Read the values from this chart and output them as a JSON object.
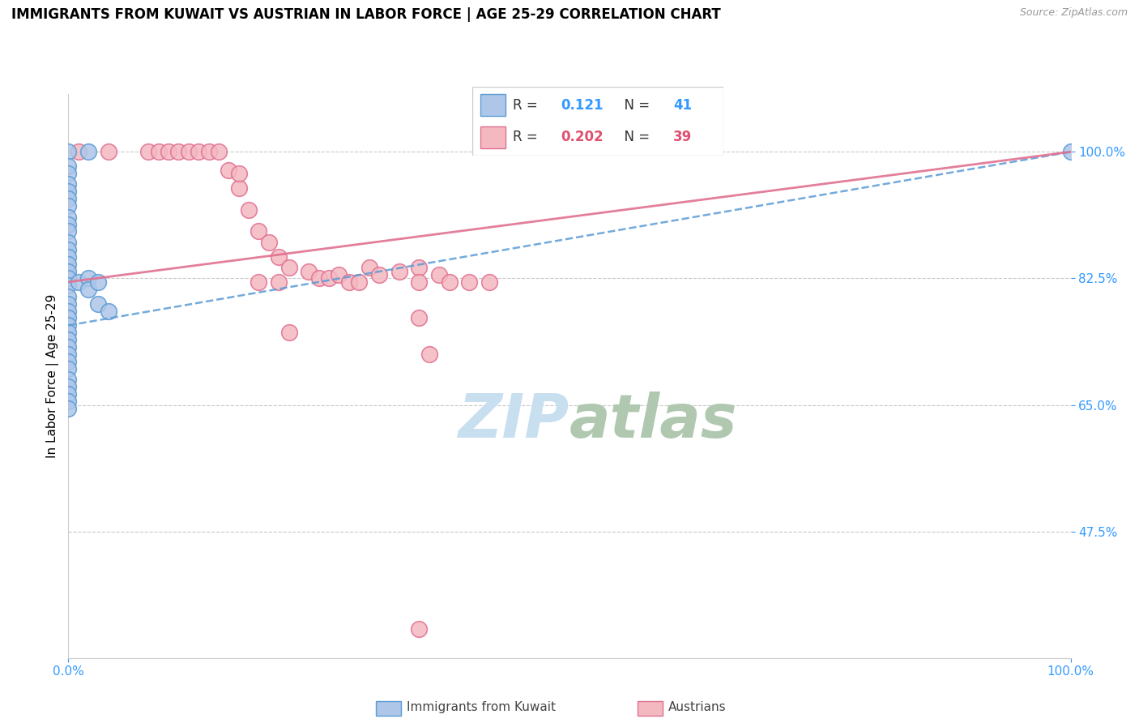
{
  "title": "IMMIGRANTS FROM KUWAIT VS AUSTRIAN IN LABOR FORCE | AGE 25-29 CORRELATION CHART",
  "source": "Source: ZipAtlas.com",
  "ylabel": "In Labor Force | Age 25-29",
  "xlim": [
    0.0,
    1.0
  ],
  "ylim": [
    0.3,
    1.08
  ],
  "ytick_positions": [
    0.475,
    0.65,
    0.825,
    1.0
  ],
  "ytick_labels": [
    "47.5%",
    "65.0%",
    "82.5%",
    "100.0%"
  ],
  "R_blue": 0.121,
  "N_blue": 41,
  "R_pink": 0.202,
  "N_pink": 39,
  "blue_color": "#aec6e8",
  "blue_edge_color": "#5b9bd5",
  "pink_color": "#f4b8c1",
  "pink_edge_color": "#e07090",
  "trend_blue_color": "#5b9bd5",
  "trend_pink_color": "#e07090",
  "watermark_color": "#c8dff0",
  "blue_scatter_x": [
    0.0,
    0.02,
    0.0,
    0.0,
    0.0,
    0.0,
    0.0,
    0.0,
    0.0,
    0.0,
    0.0,
    0.0,
    0.0,
    0.0,
    0.0,
    0.0,
    0.0,
    0.0,
    0.0,
    0.0,
    0.0,
    0.0,
    0.0,
    0.0,
    0.0,
    0.0,
    0.0,
    0.0,
    0.0,
    0.0,
    0.0,
    0.0,
    0.0,
    0.0,
    0.01,
    0.02,
    0.02,
    0.03,
    0.03,
    0.04,
    1.0
  ],
  "blue_scatter_y": [
    1.0,
    1.0,
    0.98,
    0.97,
    0.955,
    0.945,
    0.935,
    0.925,
    0.91,
    0.9,
    0.89,
    0.875,
    0.865,
    0.855,
    0.845,
    0.835,
    0.825,
    0.815,
    0.8,
    0.79,
    0.78,
    0.77,
    0.76,
    0.75,
    0.74,
    0.73,
    0.72,
    0.71,
    0.7,
    0.685,
    0.675,
    0.665,
    0.655,
    0.645,
    0.82,
    0.825,
    0.81,
    0.82,
    0.79,
    0.78,
    1.0
  ],
  "pink_scatter_x": [
    0.01,
    0.04,
    0.08,
    0.09,
    0.1,
    0.11,
    0.12,
    0.13,
    0.14,
    0.15,
    0.16,
    0.17,
    0.17,
    0.18,
    0.19,
    0.2,
    0.21,
    0.22,
    0.24,
    0.25,
    0.26,
    0.27,
    0.28,
    0.29,
    0.3,
    0.31,
    0.33,
    0.35,
    0.37,
    0.38,
    0.19,
    0.21,
    0.22,
    0.35,
    0.36,
    0.4,
    0.42,
    0.35,
    0.35
  ],
  "pink_scatter_y": [
    1.0,
    1.0,
    1.0,
    1.0,
    1.0,
    1.0,
    1.0,
    1.0,
    1.0,
    1.0,
    0.975,
    0.95,
    0.97,
    0.92,
    0.89,
    0.875,
    0.855,
    0.84,
    0.835,
    0.825,
    0.825,
    0.83,
    0.82,
    0.82,
    0.84,
    0.83,
    0.835,
    0.84,
    0.83,
    0.82,
    0.82,
    0.82,
    0.75,
    0.82,
    0.72,
    0.82,
    0.82,
    0.77,
    0.34
  ]
}
